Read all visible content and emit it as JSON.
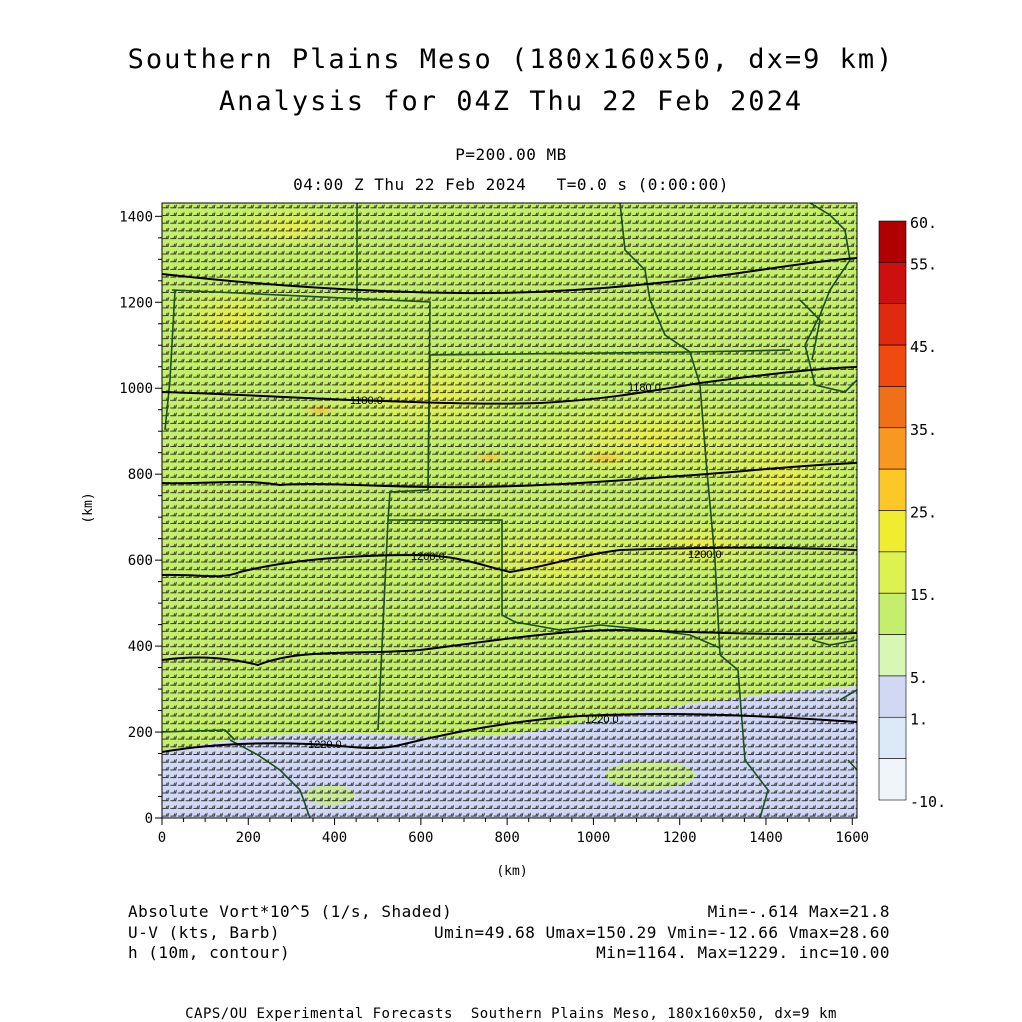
{
  "header": {
    "title_line1": "Southern Plains Meso (180x160x50, dx=9 km)",
    "title_line2": "Analysis for 04Z Thu 22 Feb 2024",
    "level": "P=200.00 MB",
    "valid_time": "04:00 Z Thu 22 Feb 2024   T=0.0 s (0:00:00)"
  },
  "axes": {
    "x_unit": "(km)",
    "y_unit": "(km)",
    "x_ticks": [
      0,
      200,
      400,
      600,
      800,
      1000,
      1200,
      1400,
      1600
    ],
    "y_ticks": [
      0,
      200,
      400,
      600,
      800,
      1000,
      1200,
      1400
    ],
    "x_range": [
      0,
      1611
    ],
    "y_range": [
      0,
      1431
    ]
  },
  "colorbar": {
    "labels": [
      "60.",
      "55.",
      "45.",
      "35.",
      "25.",
      "15.",
      "5.",
      "1.",
      "-10."
    ],
    "colors_top_to_bottom": [
      "#b00000",
      "#cc1010",
      "#e02a10",
      "#f04a10",
      "#f07018",
      "#f89820",
      "#fcc828",
      "#f0ec30",
      "#dcf250",
      "#c4ee6c",
      "#d8f6b4",
      "#d0d8f4",
      "#dceaf8",
      "#eef6fc"
    ]
  },
  "contours": {
    "variable": "h (10m, contour)",
    "labels": [
      {
        "text": "1180.0",
        "x": 480,
        "y": 975
      },
      {
        "text": "1180.0",
        "x": 1130,
        "y": 1005
      },
      {
        "text": "1200.0",
        "x": 630,
        "y": 610
      },
      {
        "text": "1200.0",
        "x": 1270,
        "y": 615
      },
      {
        "text": "1220.0",
        "x": 1040,
        "y": 235
      },
      {
        "text": "1220.0",
        "x": 390,
        "y": 170
      }
    ]
  },
  "footer": {
    "shade_label": "Absolute Vort*10^5 (1/s, Shaded)",
    "shade_stats": "Min=-.614 Max=21.8",
    "barb_label": "U-V (kts, Barb)",
    "barb_stats": "Umin=49.68 Umax=150.29 Vmin=-12.66 Vmax=28.60",
    "contour_label": "h (10m, contour)",
    "contour_stats": "Min=1164. Max=1229. inc=10.00",
    "credit": "CAPS/OU Experimental Forecasts  Southern Plains Meso, 180x160x50, dx=9 km"
  },
  "colors": {
    "base_field": "#c4ee6c",
    "low_vort_field": "#d0d8f4",
    "barbs": "#1a1a1a",
    "borders": "#1e4f20",
    "contours": "#000000"
  }
}
